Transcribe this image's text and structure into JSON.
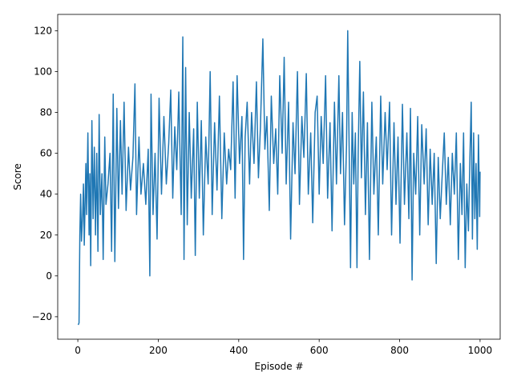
{
  "chart_data": {
    "type": "line",
    "title": "",
    "xlabel": "Episode #",
    "ylabel": "Score",
    "xlim": [
      -50,
      1050
    ],
    "ylim": [
      -31,
      128
    ],
    "xticks": [
      0,
      200,
      400,
      600,
      800,
      1000
    ],
    "xtick_labels": [
      "0",
      "200",
      "400",
      "600",
      "800",
      "1000"
    ],
    "yticks": [
      -20,
      0,
      20,
      40,
      60,
      80,
      100,
      120
    ],
    "ytick_labels": [
      "−20",
      "0",
      "20",
      "40",
      "60",
      "80",
      "100",
      "120"
    ],
    "grid": false,
    "legend": "none",
    "line_color": "#1f77b4",
    "series": [
      {
        "x_start": 1,
        "x_step": 1,
        "y_anchor_points": [
          [
            1,
            -24
          ],
          [
            3,
            -23
          ],
          [
            5,
            20
          ],
          [
            7,
            40
          ],
          [
            9,
            17
          ],
          [
            12,
            30
          ],
          [
            14,
            45
          ],
          [
            16,
            15
          ],
          [
            20,
            55
          ],
          [
            22,
            30
          ],
          [
            25,
            70
          ],
          [
            28,
            20
          ],
          [
            30,
            50
          ],
          [
            32,
            5
          ],
          [
            35,
            76
          ],
          [
            38,
            28
          ],
          [
            41,
            63
          ],
          [
            44,
            20
          ],
          [
            47,
            60
          ],
          [
            50,
            12
          ],
          [
            53,
            79
          ],
          [
            56,
            30
          ],
          [
            60,
            50
          ],
          [
            63,
            8
          ],
          [
            67,
            68
          ],
          [
            70,
            35
          ],
          [
            75,
            45
          ],
          [
            80,
            60
          ],
          [
            84,
            12
          ],
          [
            88,
            89
          ],
          [
            92,
            7
          ],
          [
            97,
            82
          ],
          [
            101,
            33
          ],
          [
            106,
            76
          ],
          [
            110,
            40
          ],
          [
            115,
            85
          ],
          [
            120,
            32
          ],
          [
            126,
            63
          ],
          [
            131,
            42
          ],
          [
            137,
            58
          ],
          [
            142,
            94
          ],
          [
            146,
            30
          ],
          [
            152,
            68
          ],
          [
            157,
            40
          ],
          [
            163,
            55
          ],
          [
            169,
            35
          ],
          [
            175,
            62
          ],
          [
            179,
            0
          ],
          [
            182,
            89
          ],
          [
            187,
            30
          ],
          [
            192,
            60
          ],
          [
            197,
            18
          ],
          [
            202,
            87
          ],
          [
            208,
            40
          ],
          [
            214,
            78
          ],
          [
            220,
            45
          ],
          [
            226,
            65
          ],
          [
            231,
            91
          ],
          [
            236,
            38
          ],
          [
            241,
            73
          ],
          [
            246,
            52
          ],
          [
            251,
            90
          ],
          [
            257,
            30
          ],
          [
            261,
            117
          ],
          [
            264,
            8
          ],
          [
            268,
            102
          ],
          [
            272,
            25
          ],
          [
            277,
            80
          ],
          [
            282,
            38
          ],
          [
            288,
            72
          ],
          [
            292,
            10
          ],
          [
            297,
            85
          ],
          [
            302,
            38
          ],
          [
            307,
            76
          ],
          [
            312,
            20
          ],
          [
            318,
            68
          ],
          [
            324,
            45
          ],
          [
            329,
            100
          ],
          [
            334,
            30
          ],
          [
            340,
            75
          ],
          [
            346,
            42
          ],
          [
            352,
            88
          ],
          [
            358,
            28
          ],
          [
            364,
            70
          ],
          [
            370,
            45
          ],
          [
            375,
            62
          ],
          [
            380,
            52
          ],
          [
            386,
            95
          ],
          [
            391,
            38
          ],
          [
            396,
            98
          ],
          [
            402,
            55
          ],
          [
            408,
            78
          ],
          [
            412,
            8
          ],
          [
            416,
            68
          ],
          [
            421,
            85
          ],
          [
            427,
            45
          ],
          [
            432,
            80
          ],
          [
            438,
            55
          ],
          [
            444,
            95
          ],
          [
            449,
            48
          ],
          [
            454,
            73
          ],
          [
            460,
            116
          ],
          [
            465,
            62
          ],
          [
            470,
            78
          ],
          [
            476,
            32
          ],
          [
            481,
            88
          ],
          [
            487,
            55
          ],
          [
            492,
            72
          ],
          [
            497,
            40
          ],
          [
            502,
            98
          ],
          [
            508,
            60
          ],
          [
            513,
            107
          ],
          [
            518,
            45
          ],
          [
            524,
            85
          ],
          [
            529,
            18
          ],
          [
            535,
            75
          ],
          [
            540,
            50
          ],
          [
            546,
            100
          ],
          [
            551,
            35
          ],
          [
            557,
            78
          ],
          [
            562,
            58
          ],
          [
            568,
            99
          ],
          [
            573,
            40
          ],
          [
            579,
            70
          ],
          [
            584,
            26
          ],
          [
            590,
            80
          ],
          [
            595,
            88
          ],
          [
            600,
            40
          ],
          [
            605,
            78
          ],
          [
            610,
            55
          ],
          [
            616,
            98
          ],
          [
            621,
            38
          ],
          [
            627,
            75
          ],
          [
            632,
            22
          ],
          [
            638,
            85
          ],
          [
            643,
            45
          ],
          [
            649,
            98
          ],
          [
            653,
            50
          ],
          [
            658,
            80
          ],
          [
            663,
            25
          ],
          [
            668,
            64
          ],
          [
            671,
            120
          ],
          [
            675,
            55
          ],
          [
            678,
            4
          ],
          [
            682,
            80
          ],
          [
            686,
            45
          ],
          [
            690,
            70
          ],
          [
            694,
            4
          ],
          [
            697,
            60
          ],
          [
            701,
            105
          ],
          [
            705,
            48
          ],
          [
            710,
            90
          ],
          [
            715,
            30
          ],
          [
            720,
            75
          ],
          [
            725,
            8
          ],
          [
            731,
            85
          ],
          [
            736,
            40
          ],
          [
            742,
            68
          ],
          [
            747,
            20
          ],
          [
            753,
            88
          ],
          [
            758,
            45
          ],
          [
            764,
            80
          ],
          [
            769,
            52
          ],
          [
            775,
            85
          ],
          [
            780,
            20
          ],
          [
            786,
            75
          ],
          [
            791,
            35
          ],
          [
            796,
            68
          ],
          [
            801,
            16
          ],
          [
            807,
            84
          ],
          [
            812,
            35
          ],
          [
            818,
            70
          ],
          [
            823,
            28
          ],
          [
            827,
            82
          ],
          [
            831,
            -2
          ],
          [
            835,
            60
          ],
          [
            840,
            40
          ],
          [
            845,
            78
          ],
          [
            850,
            20
          ],
          [
            855,
            74
          ],
          [
            861,
            45
          ],
          [
            866,
            72
          ],
          [
            871,
            25
          ],
          [
            876,
            62
          ],
          [
            881,
            35
          ],
          [
            886,
            60
          ],
          [
            891,
            6
          ],
          [
            896,
            58
          ],
          [
            901,
            28
          ],
          [
            906,
            50
          ],
          [
            911,
            70
          ],
          [
            916,
            35
          ],
          [
            921,
            58
          ],
          [
            926,
            25
          ],
          [
            931,
            60
          ],
          [
            936,
            40
          ],
          [
            941,
            70
          ],
          [
            946,
            8
          ],
          [
            951,
            55
          ],
          [
            955,
            30
          ],
          [
            959,
            70
          ],
          [
            963,
            4
          ],
          [
            967,
            45
          ],
          [
            971,
            22
          ],
          [
            975,
            60
          ],
          [
            978,
            85
          ],
          [
            981,
            18
          ],
          [
            984,
            70
          ],
          [
            987,
            28
          ],
          [
            990,
            55
          ],
          [
            993,
            13
          ],
          [
            996,
            69
          ],
          [
            999,
            29
          ],
          [
            1000,
            51
          ]
        ]
      }
    ]
  }
}
